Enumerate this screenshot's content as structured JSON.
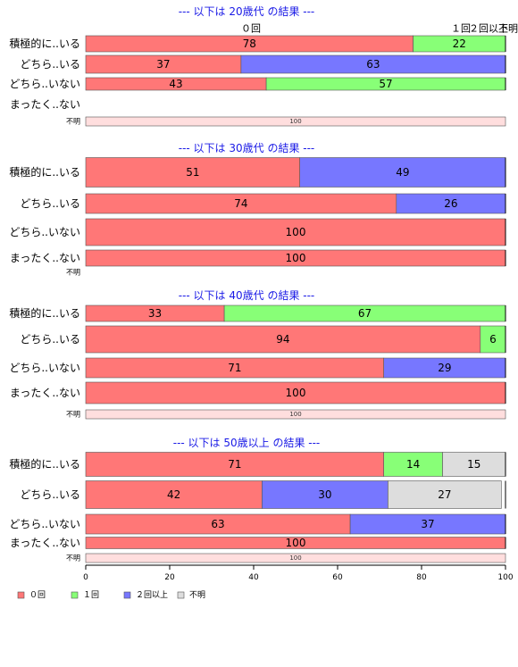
{
  "chart_data": {
    "type": "bar",
    "orientation": "horizontal",
    "stacked": true,
    "xlim": [
      0,
      100
    ],
    "x_ticks": [
      0,
      20,
      40,
      60,
      80,
      100
    ],
    "grid": false,
    "legend_placement": "bottom-left",
    "series": [
      {
        "name": "０回",
        "color": "#ff7777"
      },
      {
        "name": "１回",
        "color": "#88ff77"
      },
      {
        "name": "２回以上",
        "color": "#7777ff"
      },
      {
        "name": "不明",
        "color": "#dddddd"
      }
    ],
    "top_labels": [
      "０回",
      "１回",
      "２回以上",
      "不明"
    ],
    "groups": [
      {
        "title": "--- 以下は 20歳代 の結果 ---",
        "rows": [
          {
            "label": "積極的に..いる",
            "values": [
              78,
              22,
              0,
              0
            ]
          },
          {
            "label": "どちら..いる",
            "values": [
              37,
              0,
              63,
              0
            ]
          },
          {
            "label": "どちら..いない",
            "values": [
              43,
              57,
              0,
              0
            ]
          },
          {
            "label": "まったく..ない",
            "values": [
              0,
              0,
              0,
              0
            ]
          },
          {
            "label": "不明",
            "values": [
              100
            ],
            "unknown": true
          }
        ]
      },
      {
        "title": "--- 以下は 30歳代 の結果 ---",
        "rows": [
          {
            "label": "積極的に..いる",
            "values": [
              51,
              0,
              49,
              0
            ]
          },
          {
            "label": "どちら..いる",
            "values": [
              74,
              0,
              26,
              0
            ]
          },
          {
            "label": "どちら..いない",
            "values": [
              100,
              0,
              0,
              0
            ]
          },
          {
            "label": "まったく..ない",
            "values": [
              100,
              0,
              0,
              0
            ]
          },
          {
            "label": "不明",
            "values": [],
            "unknown": true
          }
        ]
      },
      {
        "title": "--- 以下は 40歳代 の結果 ---",
        "rows": [
          {
            "label": "積極的に..いる",
            "values": [
              33,
              67,
              0,
              0
            ]
          },
          {
            "label": "どちら..いる",
            "values": [
              94,
              6,
              0,
              0
            ]
          },
          {
            "label": "どちら..いない",
            "values": [
              71,
              0,
              29,
              0
            ]
          },
          {
            "label": "まったく..ない",
            "values": [
              100,
              0,
              0,
              0
            ]
          },
          {
            "label": "不明",
            "values": [
              100
            ],
            "unknown": true
          }
        ]
      },
      {
        "title": "--- 以下は 50歳以上 の結果 ---",
        "rows": [
          {
            "label": "積極的に..いる",
            "values": [
              71,
              14,
              0,
              15
            ]
          },
          {
            "label": "どちら..いる",
            "values": [
              42,
              0,
              30,
              27
            ]
          },
          {
            "label": "どちら..いない",
            "values": [
              63,
              0,
              37,
              0
            ]
          },
          {
            "label": "まったく..ない",
            "values": [
              100,
              0,
              0,
              0
            ]
          },
          {
            "label": "不明",
            "values": [
              100
            ],
            "unknown": true
          }
        ]
      }
    ]
  }
}
